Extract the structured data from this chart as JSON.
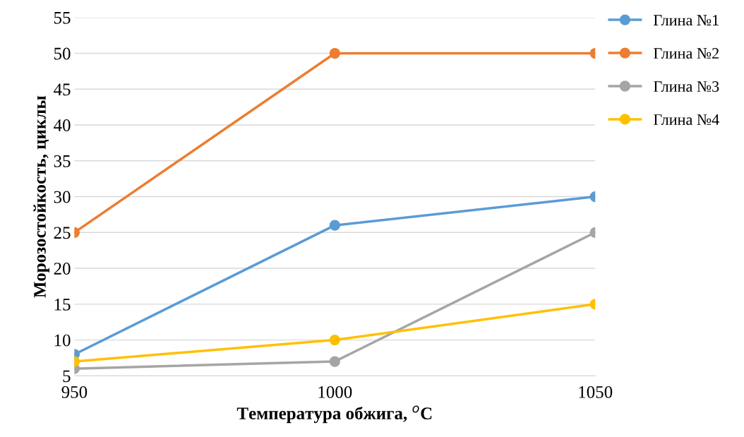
{
  "chart_data": {
    "type": "line",
    "xlabel": "Температура обжига, $^{o}$C",
    "ylabel": "Морозостойкость, циклы",
    "x": [
      950,
      1000,
      1050
    ],
    "series": [
      {
        "name": "Глина №1",
        "color": "#5b9bd5",
        "values": [
          8,
          26,
          30
        ]
      },
      {
        "name": "Глина №2",
        "color": "#ed7d31",
        "values": [
          25,
          50,
          50
        ]
      },
      {
        "name": "Глина №3",
        "color": "#a5a5a5",
        "values": [
          6,
          7,
          25
        ]
      },
      {
        "name": "Глина №4",
        "color": "#ffc000",
        "values": [
          7,
          10,
          15
        ]
      }
    ],
    "xlim": [
      950,
      1050
    ],
    "xticks": [
      950,
      1000,
      1050
    ],
    "ylim": [
      5,
      55
    ],
    "yticks": [
      5,
      10,
      15,
      20,
      25,
      30,
      35,
      40,
      45,
      50,
      55
    ],
    "grid": "y",
    "legend": "right",
    "marker": "circle",
    "line_style": "solid"
  }
}
